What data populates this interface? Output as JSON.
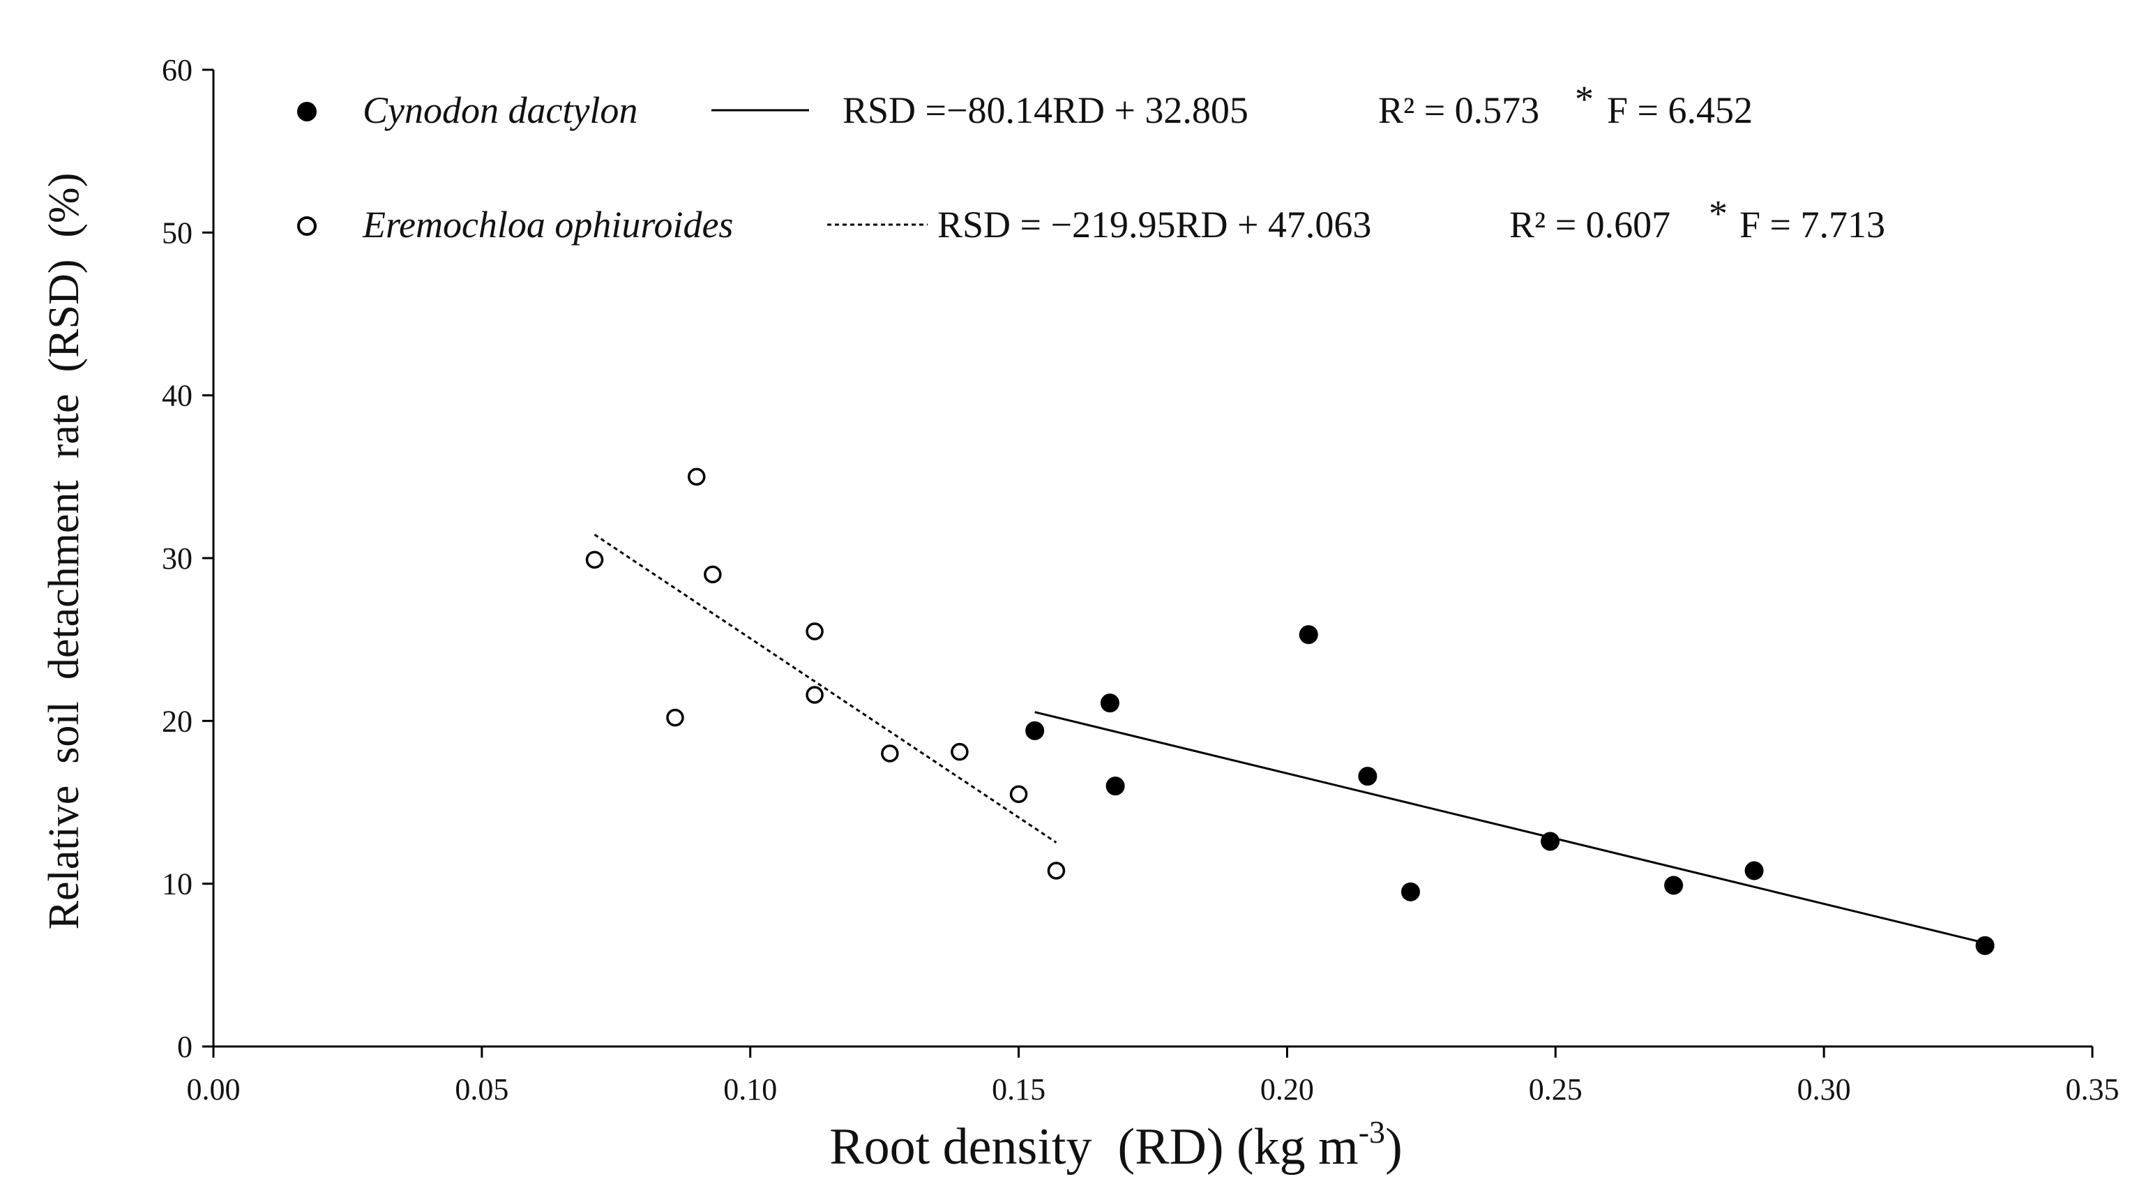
{
  "chart_data": {
    "type": "scatter",
    "title": "",
    "xlabel": "Root density  (RD) (kg m-3)",
    "xlabel_parts": {
      "main": "Root density  (RD) (kg m",
      "exponent": "-3",
      "close": ")"
    },
    "ylabel": "Relative  soil  detachment  rate  (RSD)  (%)",
    "xlim": [
      0.0,
      0.35
    ],
    "ylim": [
      0,
      60
    ],
    "xticks": [
      "0.00",
      "0.05",
      "0.10",
      "0.15",
      "0.20",
      "0.25",
      "0.30",
      "0.35"
    ],
    "xtick_values": [
      0.0,
      0.05,
      0.1,
      0.15,
      0.2,
      0.25,
      0.3,
      0.35
    ],
    "yticks": [
      "0",
      "10",
      "20",
      "30",
      "40",
      "50",
      "60"
    ],
    "ytick_values": [
      0,
      10,
      20,
      30,
      40,
      50,
      60
    ],
    "grid": false,
    "legend_position": "top-left",
    "series": [
      {
        "name": "Cynodon dactylon",
        "marker": "filled-circle",
        "line_style": "solid",
        "color": "#000000",
        "equation": "RSD =−80.14RD + 32.805",
        "r2_label": "R² = 0.573",
        "sig": "*",
        "f_label": "F = 6.452",
        "fit": {
          "slope": -80.14,
          "intercept": 32.805,
          "x_range": [
            0.153,
            0.33
          ]
        },
        "points": [
          {
            "x": 0.153,
            "y": 19.4
          },
          {
            "x": 0.167,
            "y": 21.1
          },
          {
            "x": 0.168,
            "y": 16.0
          },
          {
            "x": 0.204,
            "y": 25.3
          },
          {
            "x": 0.215,
            "y": 16.6
          },
          {
            "x": 0.223,
            "y": 9.5
          },
          {
            "x": 0.249,
            "y": 12.6
          },
          {
            "x": 0.272,
            "y": 9.9
          },
          {
            "x": 0.287,
            "y": 10.8
          },
          {
            "x": 0.33,
            "y": 6.2
          }
        ]
      },
      {
        "name": "Eremochloa ophiuroides",
        "marker": "open-circle",
        "line_style": "dotted",
        "color": "#000000",
        "equation": "RSD = −219.95RD + 47.063",
        "r2_label": "R² = 0.607",
        "sig": "*",
        "f_label": "F = 7.713",
        "fit": {
          "slope": -219.95,
          "intercept": 47.063,
          "x_range": [
            0.071,
            0.157
          ]
        },
        "points": [
          {
            "x": 0.071,
            "y": 29.9
          },
          {
            "x": 0.086,
            "y": 20.2
          },
          {
            "x": 0.09,
            "y": 35.0
          },
          {
            "x": 0.093,
            "y": 29.0
          },
          {
            "x": 0.112,
            "y": 25.5
          },
          {
            "x": 0.112,
            "y": 21.6
          },
          {
            "x": 0.126,
            "y": 18.0
          },
          {
            "x": 0.139,
            "y": 18.1
          },
          {
            "x": 0.15,
            "y": 15.5
          },
          {
            "x": 0.157,
            "y": 10.8
          }
        ]
      }
    ]
  }
}
